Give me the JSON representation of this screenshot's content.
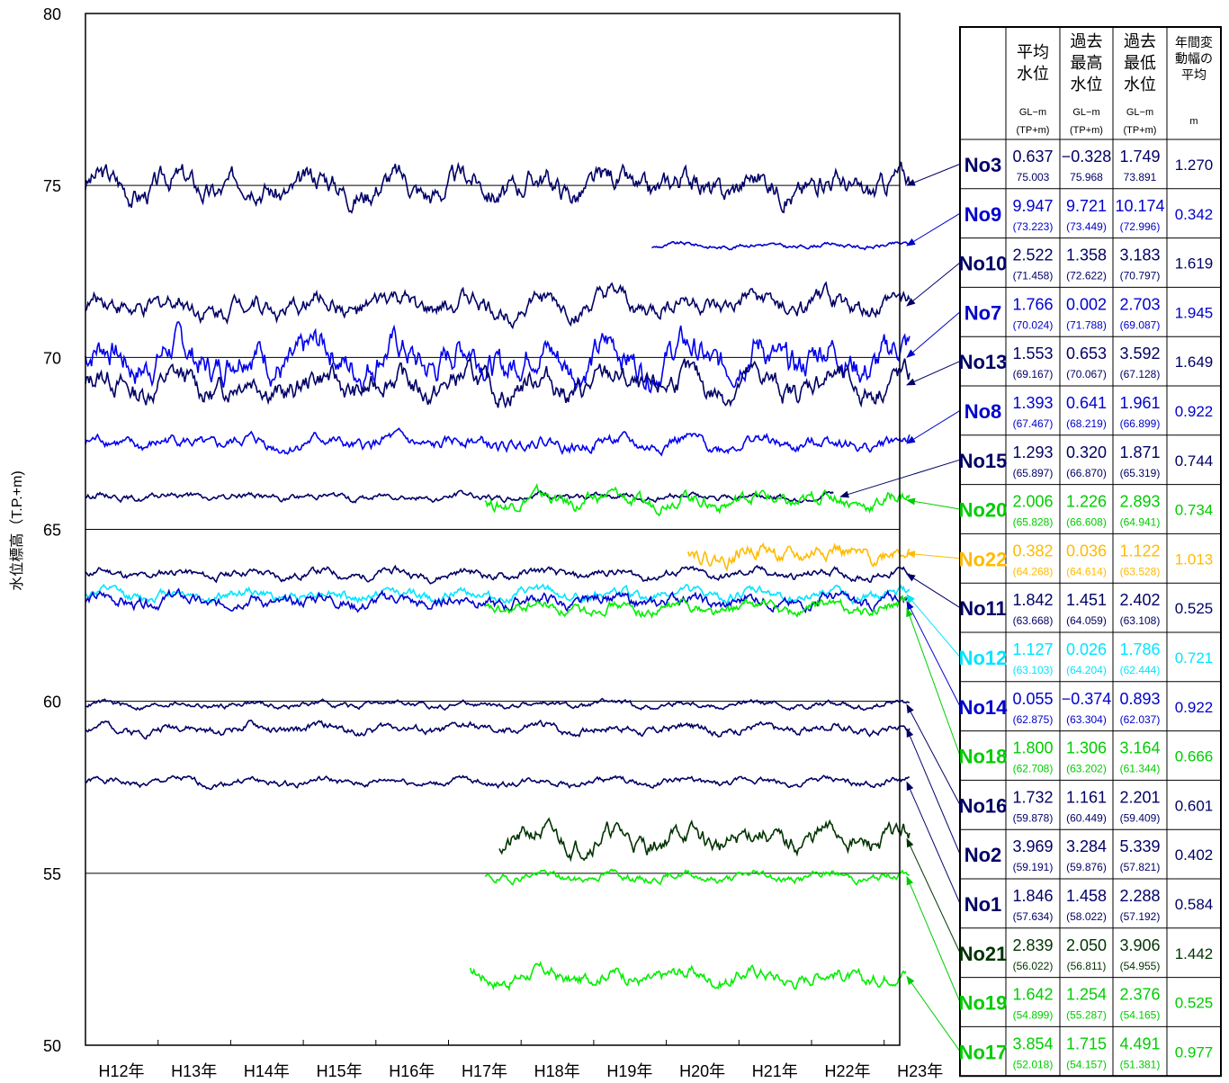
{
  "chart_data": {
    "type": "line",
    "title": "",
    "xlabel": "",
    "ylabel": "水位標高（T.P.+m)",
    "ylim": [
      50,
      80
    ],
    "y_ticks": [
      50,
      55,
      60,
      65,
      70,
      75,
      80
    ],
    "x_ticks": [
      "H12年",
      "H13年",
      "H14年",
      "H15年",
      "H16年",
      "H17年",
      "H18年",
      "H19年",
      "H20年",
      "H21年",
      "H22年",
      "H23年"
    ],
    "xlim": [
      12.0,
      23.35
    ],
    "grid_y": [
      55,
      60,
      65,
      70,
      75
    ],
    "series": [
      {
        "name": "No3",
        "color": "#000066",
        "start": 12.0,
        "end": 23.35,
        "level": 75.0,
        "noise": 0.45,
        "seed": 3
      },
      {
        "name": "No9",
        "color": "#0000cc",
        "start": 19.8,
        "end": 23.35,
        "level": 73.25,
        "noise": 0.08,
        "seed": 9
      },
      {
        "name": "No10",
        "color": "#000066",
        "start": 12.0,
        "end": 23.35,
        "level": 71.5,
        "noise": 0.35,
        "seed": 10
      },
      {
        "name": "No7",
        "color": "#0000ee",
        "start": 12.0,
        "end": 23.35,
        "level": 70.0,
        "noise": 0.6,
        "seed": 7
      },
      {
        "name": "No13",
        "color": "#000066",
        "start": 12.0,
        "end": 23.35,
        "level": 69.2,
        "noise": 0.45,
        "seed": 13
      },
      {
        "name": "No8",
        "color": "#0000ee",
        "start": 12.0,
        "end": 23.35,
        "level": 67.5,
        "noise": 0.22,
        "seed": 8
      },
      {
        "name": "No15",
        "color": "#000066",
        "start": 12.0,
        "end": 22.3,
        "level": 65.95,
        "noise": 0.12,
        "seed": 15
      },
      {
        "name": "No20",
        "color": "#00ee00",
        "start": 17.5,
        "end": 23.35,
        "level": 65.85,
        "noise": 0.25,
        "seed": 20
      },
      {
        "name": "No22",
        "color": "#ffbb00",
        "start": 20.3,
        "end": 23.35,
        "level": 64.3,
        "noise": 0.3,
        "seed": 22
      },
      {
        "name": "No11",
        "color": "#000066",
        "start": 12.0,
        "end": 23.35,
        "level": 63.7,
        "noise": 0.15,
        "seed": 11
      },
      {
        "name": "No12",
        "color": "#00e5ff",
        "start": 12.0,
        "end": 23.35,
        "level": 63.1,
        "noise": 0.18,
        "seed": 12
      },
      {
        "name": "No14",
        "color": "#0000cc",
        "start": 12.0,
        "end": 23.35,
        "level": 62.9,
        "noise": 0.22,
        "seed": 14
      },
      {
        "name": "No18",
        "color": "#00ee00",
        "start": 17.5,
        "end": 23.35,
        "level": 62.7,
        "noise": 0.2,
        "seed": 18
      },
      {
        "name": "No16",
        "color": "#000066",
        "start": 12.0,
        "end": 23.35,
        "level": 59.9,
        "noise": 0.1,
        "seed": 16
      },
      {
        "name": "No2",
        "color": "#000066",
        "start": 12.0,
        "end": 23.35,
        "level": 59.2,
        "noise": 0.15,
        "seed": 2
      },
      {
        "name": "No1",
        "color": "#000066",
        "start": 12.0,
        "end": 23.35,
        "level": 57.65,
        "noise": 0.12,
        "seed": 1
      },
      {
        "name": "No21",
        "color": "#003300",
        "start": 17.7,
        "end": 23.35,
        "level": 56.0,
        "noise": 0.35,
        "seed": 21
      },
      {
        "name": "No19",
        "color": "#00ee00",
        "start": 17.5,
        "end": 23.35,
        "level": 54.9,
        "noise": 0.15,
        "seed": 19
      },
      {
        "name": "No17",
        "color": "#00ee00",
        "start": 17.3,
        "end": 23.3,
        "level": 52.0,
        "noise": 0.25,
        "seed": 17
      }
    ]
  },
  "table": {
    "headers": {
      "avg": [
        "平均",
        "水位"
      ],
      "max": [
        "過去",
        "最高",
        "水位"
      ],
      "min": [
        "過去",
        "最低",
        "水位"
      ],
      "range": [
        "年間変",
        "動幅の",
        "平均"
      ],
      "unit_gl": "GL−m",
      "unit_tp": "(TP+m)",
      "unit_m": "m"
    },
    "rows": [
      {
        "name": "No3",
        "color": "#000066",
        "avg": "0.637",
        "avg_tp": "75.003",
        "max": "−0.328",
        "max_tp": "75.968",
        "min": "1.749",
        "min_tp": "73.891",
        "range": "1.270"
      },
      {
        "name": "No9",
        "color": "#0000cc",
        "avg": "9.947",
        "avg_tp": "(73.223)",
        "max": "9.721",
        "max_tp": "(73.449)",
        "min": "10.174",
        "min_tp": "(72.996)",
        "range": "0.342"
      },
      {
        "name": "No10",
        "color": "#000066",
        "avg": "2.522",
        "avg_tp": "(71.458)",
        "max": "1.358",
        "max_tp": "(72.622)",
        "min": "3.183",
        "min_tp": "(70.797)",
        "range": "1.619"
      },
      {
        "name": "No7",
        "color": "#0000cc",
        "avg": "1.766",
        "avg_tp": "(70.024)",
        "max": "0.002",
        "max_tp": "(71.788)",
        "min": "2.703",
        "min_tp": "(69.087)",
        "range": "1.945"
      },
      {
        "name": "No13",
        "color": "#000066",
        "avg": "1.553",
        "avg_tp": "(69.167)",
        "max": "0.653",
        "max_tp": "(70.067)",
        "min": "3.592",
        "min_tp": "(67.128)",
        "range": "1.649"
      },
      {
        "name": "No8",
        "color": "#0000cc",
        "avg": "1.393",
        "avg_tp": "(67.467)",
        "max": "0.641",
        "max_tp": "(68.219)",
        "min": "1.961",
        "min_tp": "(66.899)",
        "range": "0.922"
      },
      {
        "name": "No15",
        "color": "#000066",
        "avg": "1.293",
        "avg_tp": "(65.897)",
        "max": "0.320",
        "max_tp": "(66.870)",
        "min": "1.871",
        "min_tp": "(65.319)",
        "range": "0.744"
      },
      {
        "name": "No20",
        "color": "#00cc00",
        "avg": "2.006",
        "avg_tp": "(65.828)",
        "max": "1.226",
        "max_tp": "(66.608)",
        "min": "2.893",
        "min_tp": "(64.941)",
        "range": "0.734"
      },
      {
        "name": "No22",
        "color": "#ffbb00",
        "avg": "0.382",
        "avg_tp": "(64.268)",
        "max": "0.036",
        "max_tp": "(64.614)",
        "min": "1.122",
        "min_tp": "(63.528)",
        "range": "1.013"
      },
      {
        "name": "No11",
        "color": "#000066",
        "avg": "1.842",
        "avg_tp": "(63.668)",
        "max": "1.451",
        "max_tp": "(64.059)",
        "min": "2.402",
        "min_tp": "(63.108)",
        "range": "0.525"
      },
      {
        "name": "No12",
        "color": "#00e5ff",
        "avg": "1.127",
        "avg_tp": "(63.103)",
        "max": "0.026",
        "max_tp": "(64.204)",
        "min": "1.786",
        "min_tp": "(62.444)",
        "range": "0.721"
      },
      {
        "name": "No14",
        "color": "#0000cc",
        "avg": "0.055",
        "avg_tp": "(62.875)",
        "max": "−0.374",
        "max_tp": "(63.304)",
        "min": "0.893",
        "min_tp": "(62.037)",
        "range": "0.922"
      },
      {
        "name": "No18",
        "color": "#00cc00",
        "avg": "1.800",
        "avg_tp": "(62.708)",
        "max": "1.306",
        "max_tp": "(63.202)",
        "min": "3.164",
        "min_tp": "(61.344)",
        "range": "0.666"
      },
      {
        "name": "No16",
        "color": "#000066",
        "avg": "1.732",
        "avg_tp": "(59.878)",
        "max": "1.161",
        "max_tp": "(60.449)",
        "min": "2.201",
        "min_tp": "(59.409)",
        "range": "0.601"
      },
      {
        "name": "No2",
        "color": "#000066",
        "avg": "3.969",
        "avg_tp": "(59.191)",
        "max": "3.284",
        "max_tp": "(59.876)",
        "min": "5.339",
        "min_tp": "(57.821)",
        "range": "0.402"
      },
      {
        "name": "No1",
        "color": "#000066",
        "avg": "1.846",
        "avg_tp": "(57.634)",
        "max": "1.458",
        "max_tp": "(58.022)",
        "min": "2.288",
        "min_tp": "(57.192)",
        "range": "0.584"
      },
      {
        "name": "No21",
        "color": "#003300",
        "avg": "2.839",
        "avg_tp": "(56.022)",
        "max": "2.050",
        "max_tp": "(56.811)",
        "min": "3.906",
        "min_tp": "(54.955)",
        "range": "1.442"
      },
      {
        "name": "No19",
        "color": "#00cc00",
        "avg": "1.642",
        "avg_tp": "(54.899)",
        "max": "1.254",
        "max_tp": "(55.287)",
        "min": "2.376",
        "min_tp": "(54.165)",
        "range": "0.525"
      },
      {
        "name": "No17",
        "color": "#00cc00",
        "avg": "3.854",
        "avg_tp": "(52.018)",
        "max": "1.715",
        "max_tp": "(54.157)",
        "min": "4.491",
        "min_tp": "(51.381)",
        "range": "0.977"
      }
    ]
  }
}
